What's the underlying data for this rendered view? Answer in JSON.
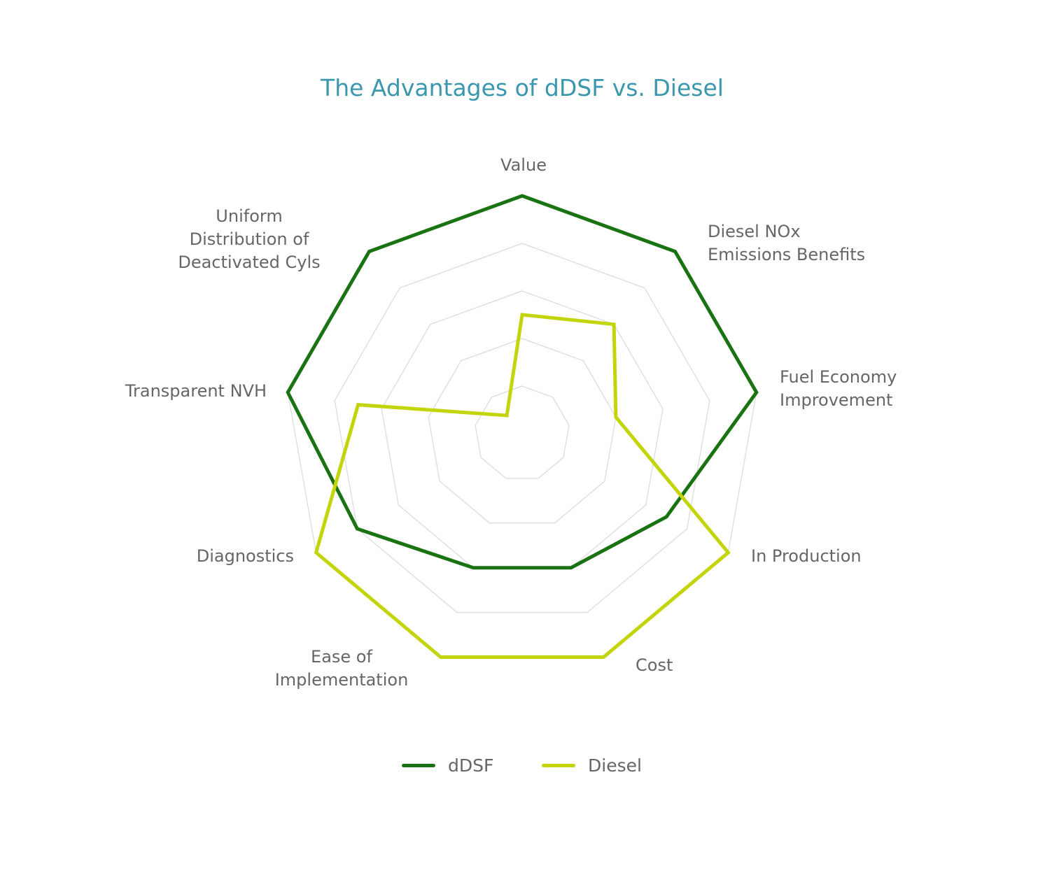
{
  "chart_data": {
    "type": "radar",
    "title": "The Advantages of dDSF vs. Diesel",
    "axes": [
      {
        "name": "value",
        "label": [
          "Value"
        ]
      },
      {
        "name": "nox",
        "label": [
          "Diesel NOx",
          "Emissions Benefits"
        ]
      },
      {
        "name": "fuel-economy",
        "label": [
          "Fuel Economy",
          "Improvement"
        ]
      },
      {
        "name": "in-production",
        "label": [
          "In Production"
        ]
      },
      {
        "name": "cost",
        "label": [
          "Cost"
        ]
      },
      {
        "name": "ease",
        "label": [
          "Ease of",
          "Implementation"
        ]
      },
      {
        "name": "diagnostics",
        "label": [
          "Diagnostics"
        ]
      },
      {
        "name": "nvh",
        "label": [
          "Transparent NVH"
        ]
      },
      {
        "name": "uniform",
        "label": [
          "Uniform",
          "Distribution of",
          "Deactivated Cyls"
        ]
      }
    ],
    "rlim": [
      0,
      5
    ],
    "grid_levels": 5,
    "series": [
      {
        "name": "dDSF",
        "color": "#1a7312",
        "values": [
          5,
          5,
          5,
          3.5,
          3,
          3,
          4,
          5,
          5
        ]
      },
      {
        "name": "Diesel",
        "color": "#c3d50a",
        "values": [
          2.5,
          3,
          2,
          5,
          5,
          5,
          5,
          3.5,
          0.5
        ]
      }
    ],
    "legend_position": "bottom"
  }
}
